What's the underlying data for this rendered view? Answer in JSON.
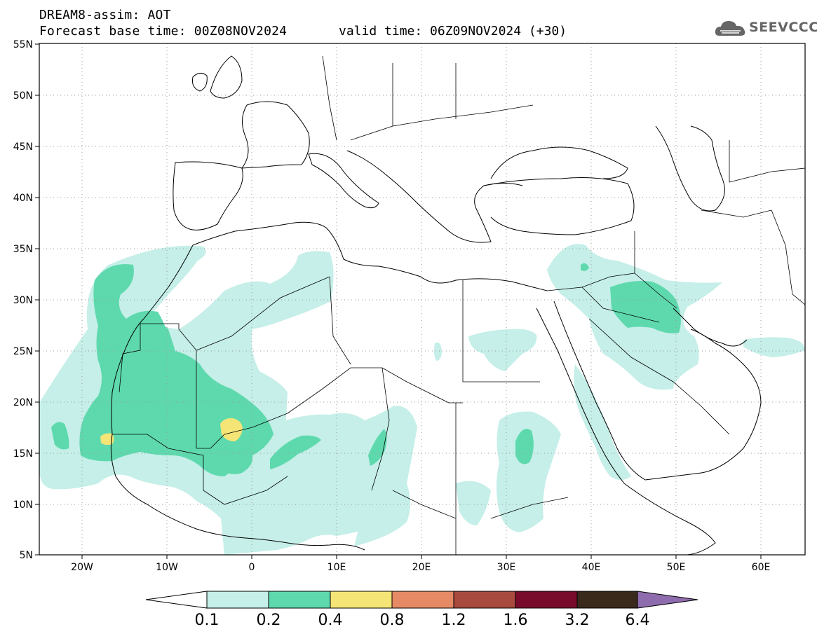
{
  "header": {
    "title": "DREAM8-assim: AOT",
    "base_time": "Forecast base time: 00Z08NOV2024",
    "valid_time": "valid time: 06Z09NOV2024 (+30)"
  },
  "logo": {
    "text": "SEEVCCC",
    "icon": "cloud-icon",
    "color": "#666666"
  },
  "map": {
    "lat_ticks": [
      "55N",
      "50N",
      "45N",
      "40N",
      "35N",
      "30N",
      "25N",
      "20N",
      "15N",
      "10N",
      "5N"
    ],
    "lon_ticks": [
      "20W",
      "10W",
      "0",
      "10E",
      "20E",
      "30E",
      "40E",
      "50E",
      "60E"
    ]
  },
  "colorbar": {
    "labels": [
      "0.1",
      "0.2",
      "0.4",
      "0.8",
      "1.2",
      "1.6",
      "3.2",
      "6.4"
    ],
    "colors": [
      "#ffffff",
      "#c5efe8",
      "#5ed9ae",
      "#f5e577",
      "#e58a64",
      "#a84a3e",
      "#780a2c",
      "#3a2a1c",
      "#8e6cad"
    ]
  }
}
